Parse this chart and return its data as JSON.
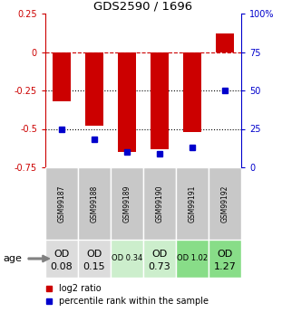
{
  "title": "GDS2590 / 1696",
  "samples": [
    "GSM99187",
    "GSM99188",
    "GSM99189",
    "GSM99190",
    "GSM99191",
    "GSM99192"
  ],
  "log2_ratio": [
    -0.32,
    -0.48,
    -0.65,
    -0.63,
    -0.52,
    0.12
  ],
  "percentile_rank": [
    25,
    18,
    10,
    9,
    13,
    50
  ],
  "ylim_left": [
    -0.75,
    0.25
  ],
  "ylim_right": [
    0,
    100
  ],
  "left_ticks": [
    0.25,
    0,
    -0.25,
    -0.5,
    -0.75
  ],
  "right_ticks": [
    100,
    75,
    50,
    25,
    0
  ],
  "right_tick_labels": [
    "100%",
    "75",
    "50",
    "25",
    "0"
  ],
  "hlines": [
    0.0,
    -0.25,
    -0.5
  ],
  "hline_styles": [
    "--",
    ":",
    ":"
  ],
  "hline_colors": [
    "#cc0000",
    "black",
    "black"
  ],
  "bar_color": "#cc0000",
  "dot_color": "#0000cc",
  "age_labels_line1": [
    "OD",
    "OD",
    "OD 0.34",
    "OD",
    "OD 1.02",
    "OD"
  ],
  "age_labels_line2": [
    "0.08",
    "0.15",
    "",
    "0.73",
    "",
    "1.27"
  ],
  "age_bg_colors": [
    "#dcdcdc",
    "#dcdcdc",
    "#cceecc",
    "#cceecc",
    "#88dd88",
    "#88dd88"
  ],
  "age_fontsize": [
    8,
    8,
    6,
    8,
    6,
    8
  ],
  "sample_bg_color": "#c8c8c8",
  "left_label_color": "#cc0000",
  "right_label_color": "#0000cc",
  "legend_labels": [
    "log2 ratio",
    "percentile rank within the sample"
  ]
}
